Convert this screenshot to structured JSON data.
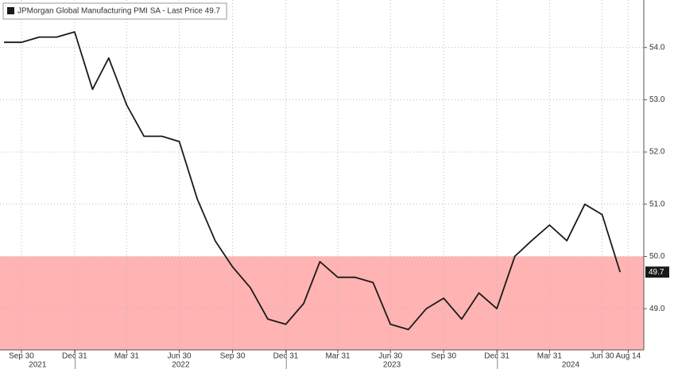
{
  "chart_data": {
    "type": "line",
    "x": [
      "2021-08-31",
      "2021-09-30",
      "2021-10-31",
      "2021-11-30",
      "2021-12-31",
      "2022-01-31",
      "2022-02-28",
      "2022-03-31",
      "2022-04-30",
      "2022-05-31",
      "2022-06-30",
      "2022-07-31",
      "2022-08-31",
      "2022-09-30",
      "2022-10-31",
      "2022-11-30",
      "2022-12-31",
      "2023-01-31",
      "2023-02-28",
      "2023-03-31",
      "2023-04-30",
      "2023-05-31",
      "2023-06-30",
      "2023-07-31",
      "2023-08-31",
      "2023-09-30",
      "2023-10-31",
      "2023-11-30",
      "2023-12-31",
      "2024-01-31",
      "2024-02-29",
      "2024-03-31",
      "2024-04-30",
      "2024-05-31",
      "2024-06-30",
      "2024-07-31"
    ],
    "series": [
      {
        "name": "JPMorgan Global Manufacturing PMI SA - Last Price 49.7",
        "color": "#1a1a1a",
        "values": [
          54.1,
          54.1,
          54.2,
          54.2,
          54.3,
          53.2,
          53.8,
          52.9,
          52.3,
          52.3,
          52.2,
          51.1,
          50.3,
          49.8,
          49.4,
          48.8,
          48.7,
          49.1,
          49.9,
          49.6,
          49.6,
          49.5,
          48.7,
          48.6,
          49.0,
          49.2,
          48.8,
          49.3,
          49.0,
          50.0,
          50.3,
          50.6,
          50.3,
          51.0,
          50.8,
          49.7
        ]
      }
    ],
    "last_value_label": "49.7",
    "xlim": [
      "2021-08-24",
      "2024-09-10"
    ],
    "xticks": [
      {
        "value": "2021-09-30",
        "label": "Sep 30"
      },
      {
        "value": "2021-12-31",
        "label": "Dec 31"
      },
      {
        "value": "2022-03-31",
        "label": "Mar 31"
      },
      {
        "value": "2022-06-30",
        "label": "Jun 30"
      },
      {
        "value": "2022-09-30",
        "label": "Sep 30"
      },
      {
        "value": "2022-12-31",
        "label": "Dec 31"
      },
      {
        "value": "2023-03-31",
        "label": "Mar 31"
      },
      {
        "value": "2023-06-30",
        "label": "Jun 30"
      },
      {
        "value": "2023-09-30",
        "label": "Sep 30"
      },
      {
        "value": "2023-12-31",
        "label": "Dec 31"
      },
      {
        "value": "2024-03-31",
        "label": "Mar 31"
      },
      {
        "value": "2024-06-30",
        "label": "Jun 30"
      },
      {
        "value": "2024-08-14",
        "label": "Aug 14"
      }
    ],
    "years": [
      "2021",
      "2022",
      "2023",
      "2024"
    ],
    "ylim": [
      48.21,
      54.91
    ],
    "yticks": [
      {
        "value": 49,
        "label": "49.0"
      },
      {
        "value": 50,
        "label": "50.0"
      },
      {
        "value": 51,
        "label": "51.0"
      },
      {
        "value": 52,
        "label": "52.0"
      },
      {
        "value": 53,
        "label": "53.0"
      },
      {
        "value": 54,
        "label": "54.0"
      }
    ],
    "shade_below": 50,
    "shade_color": "#ffb3b3",
    "grid": true
  }
}
